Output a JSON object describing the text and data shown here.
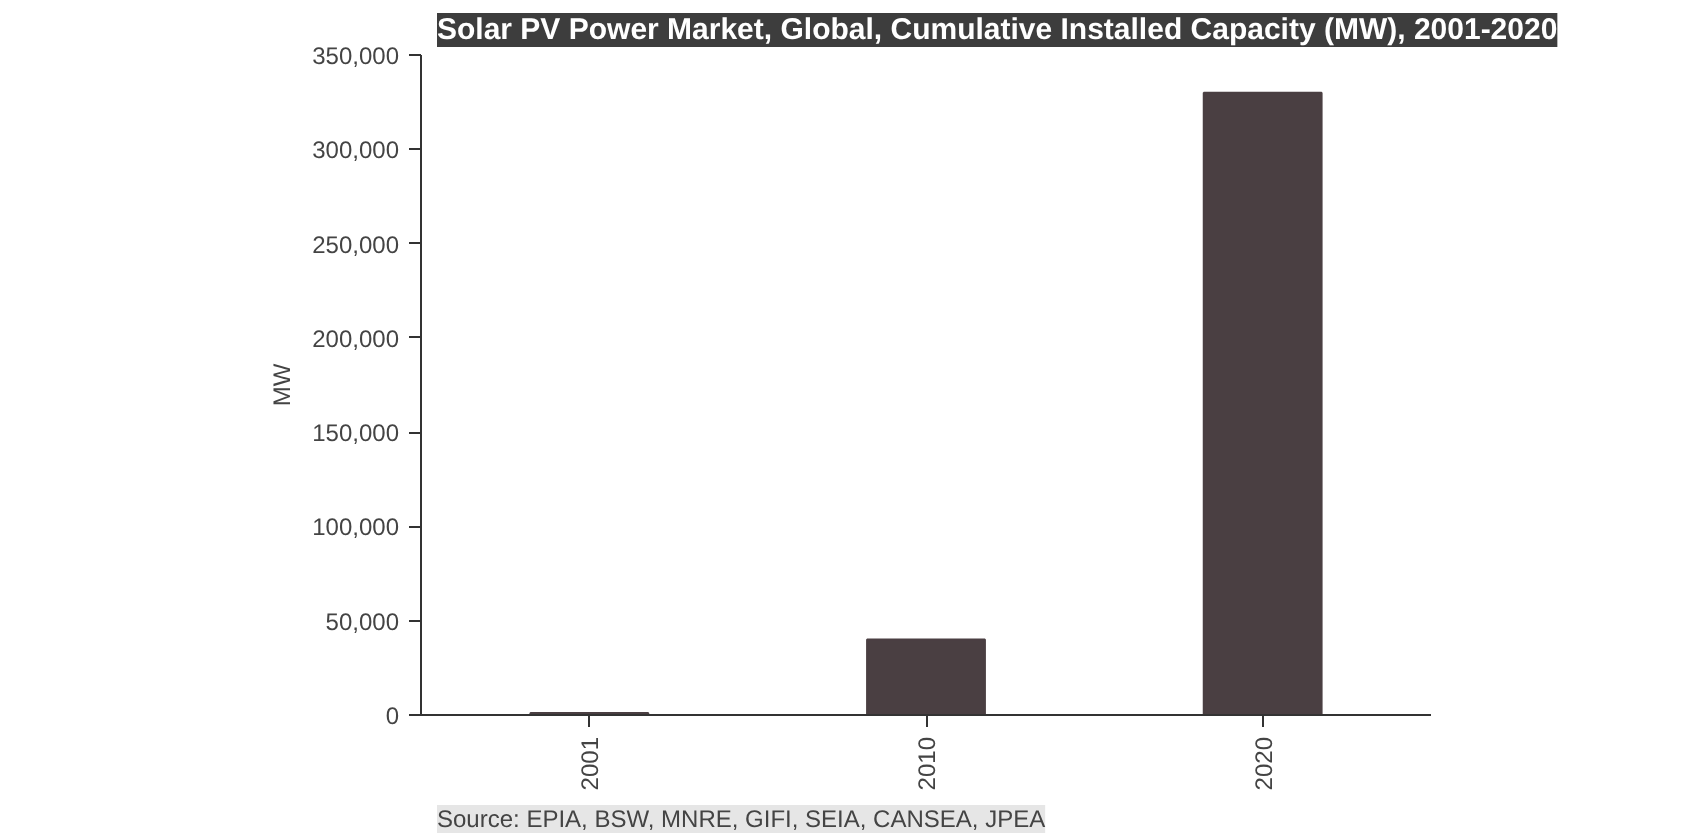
{
  "chart_data": {
    "type": "bar",
    "title": "Solar PV Power Market, Global, Cumulative Installed Capacity (MW), 2001-2020",
    "categories": [
      "2001",
      "2010",
      "2020"
    ],
    "values": [
      1000,
      40000,
      330000
    ],
    "color": "#4a3f42",
    "ylabel": "MW",
    "ylim": [
      0,
      350000
    ],
    "yticks": [
      {
        "value": 0,
        "label": "0"
      },
      {
        "value": 50000,
        "label": "50,000"
      },
      {
        "value": 100000,
        "label": "100,000"
      },
      {
        "value": 150000,
        "label": "150,000"
      },
      {
        "value": 200000,
        "label": "200,000"
      },
      {
        "value": 250000,
        "label": "250,000"
      },
      {
        "value": 300000,
        "label": "300,000"
      },
      {
        "value": 350000,
        "label": "350,000"
      }
    ],
    "grid": false,
    "annotations": [
      "Source: EPIA, BSW, MNRE, GIFI, SEIA, CANSEA, JPEA"
    ]
  }
}
